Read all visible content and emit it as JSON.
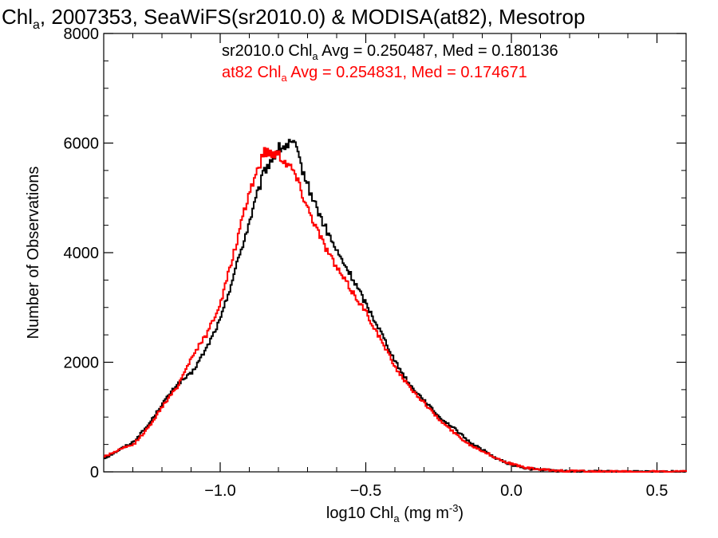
{
  "chart_data": {
    "type": "line",
    "title": {
      "pre": "Chl",
      "sub": "a",
      "post": ", 2007353, SeaWiFS(sr2010.0) & MODISA(at82), Mesotrop"
    },
    "xlabel": {
      "pre": "log10 Chl",
      "sub": "a",
      "mid": " (mg m",
      "sup": "-3",
      "post": ")"
    },
    "ylabel": "Number of Observations",
    "xlim": [
      -1.4,
      0.6
    ],
    "ylim": [
      0,
      8000
    ],
    "xticks": [
      -1.0,
      -0.5,
      0.0,
      0.5
    ],
    "xtick_labels": [
      "−1.0",
      "−0.5",
      "0.0",
      "0.5"
    ],
    "yticks": [
      0,
      2000,
      4000,
      6000,
      8000
    ],
    "ytick_labels": [
      "0",
      "2000",
      "4000",
      "6000",
      "8000"
    ],
    "grid": false,
    "legend_placement": "top",
    "colors": {
      "sr2010": "#000000",
      "at82": "#ff0000"
    },
    "x": [
      -1.4,
      -1.35,
      -1.3,
      -1.25,
      -1.2,
      -1.15,
      -1.1,
      -1.05,
      -1.0,
      -0.95,
      -0.9,
      -0.85,
      -0.8,
      -0.75,
      -0.7,
      -0.65,
      -0.6,
      -0.55,
      -0.5,
      -0.45,
      -0.4,
      -0.35,
      -0.3,
      -0.25,
      -0.2,
      -0.15,
      -0.1,
      -0.05,
      0.0,
      0.05,
      0.1,
      0.15,
      0.2,
      0.25,
      0.3,
      0.35,
      0.4,
      0.45,
      0.5,
      0.55,
      0.6
    ],
    "series": [
      {
        "name": "sr2010.0 Chl_a",
        "label": {
          "pre": "sr2010.0 Chl",
          "sub": "a",
          "post": " Avg = 0.250487, Med = 0.180136"
        },
        "color": "#000000",
        "values": [
          250,
          400,
          550,
          850,
          1250,
          1600,
          1800,
          2250,
          2800,
          3700,
          4600,
          5500,
          5900,
          6000,
          5200,
          4550,
          4000,
          3550,
          3050,
          2550,
          2000,
          1580,
          1300,
          1000,
          800,
          560,
          400,
          230,
          130,
          60,
          40,
          20,
          10,
          5,
          5,
          0,
          0,
          0,
          0,
          0,
          0
        ]
      },
      {
        "name": "at82 Chl_a",
        "label": {
          "pre": "at82 Chl",
          "sub": "a",
          "post": " Avg = 0.254831, Med = 0.174671"
        },
        "color": "#ff0000",
        "values": [
          280,
          400,
          500,
          800,
          1200,
          1550,
          2100,
          2500,
          3100,
          4100,
          5150,
          5850,
          5800,
          5500,
          4800,
          4200,
          3700,
          3300,
          2900,
          2400,
          1900,
          1530,
          1250,
          950,
          720,
          510,
          380,
          240,
          140,
          70,
          40,
          25,
          15,
          8,
          4,
          2,
          0,
          0,
          0,
          0,
          0
        ]
      }
    ]
  }
}
